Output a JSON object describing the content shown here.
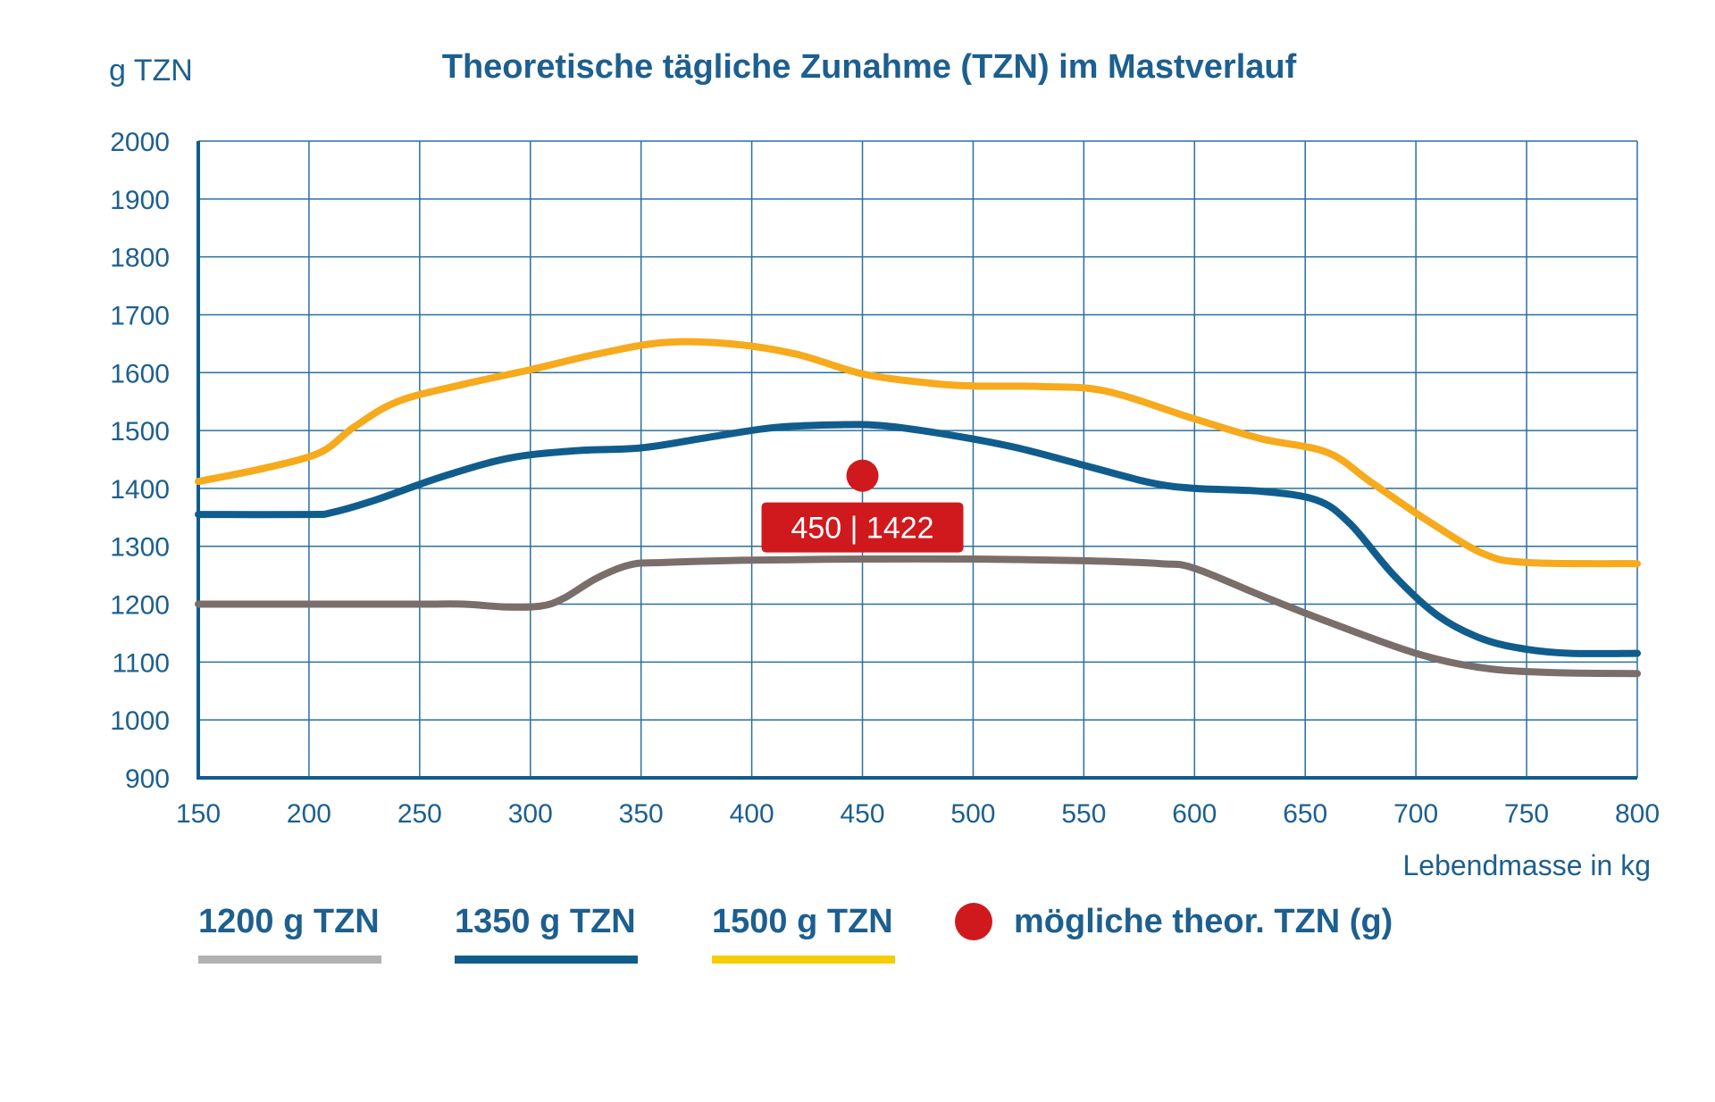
{
  "chart_data": {
    "type": "line",
    "title": "Theoretische tägliche Zunahme (TZN) im Mastverlauf",
    "ylabel": "g TZN",
    "xlabel": "Lebendmasse in kg",
    "xlim": [
      150,
      800
    ],
    "ylim": [
      900,
      2000
    ],
    "x_ticks": [
      "150",
      "200",
      "250",
      "300",
      "350",
      "400",
      "450",
      "500",
      "550",
      "600",
      "650",
      "700",
      "750",
      "800"
    ],
    "y_ticks": [
      "2000",
      "1900",
      "1800",
      "1700",
      "1600",
      "1500",
      "1400",
      "1300",
      "1200",
      "1100",
      "1000",
      "900"
    ],
    "grid": true,
    "series": [
      {
        "name": "1200 g TZN",
        "color": "#7a6e6b",
        "legend_color": "#b1b1b1",
        "points": [
          [
            150,
            1200
          ],
          [
            200,
            1200
          ],
          [
            250,
            1200
          ],
          [
            270,
            1200
          ],
          [
            290,
            1195
          ],
          [
            305,
            1197
          ],
          [
            315,
            1210
          ],
          [
            330,
            1245
          ],
          [
            345,
            1268
          ],
          [
            360,
            1272
          ],
          [
            400,
            1276
          ],
          [
            450,
            1278
          ],
          [
            500,
            1278
          ],
          [
            550,
            1275
          ],
          [
            585,
            1270
          ],
          [
            600,
            1262
          ],
          [
            630,
            1215
          ],
          [
            660,
            1170
          ],
          [
            700,
            1115
          ],
          [
            730,
            1090
          ],
          [
            760,
            1082
          ],
          [
            800,
            1080
          ]
        ]
      },
      {
        "name": "1350 g TZN",
        "color": "#105d8d",
        "legend_color": "#105d8d",
        "points": [
          [
            150,
            1355
          ],
          [
            200,
            1355
          ],
          [
            210,
            1358
          ],
          [
            230,
            1380
          ],
          [
            260,
            1420
          ],
          [
            290,
            1452
          ],
          [
            320,
            1465
          ],
          [
            350,
            1470
          ],
          [
            380,
            1488
          ],
          [
            410,
            1505
          ],
          [
            440,
            1510
          ],
          [
            460,
            1508
          ],
          [
            490,
            1492
          ],
          [
            520,
            1470
          ],
          [
            550,
            1440
          ],
          [
            580,
            1410
          ],
          [
            600,
            1400
          ],
          [
            630,
            1395
          ],
          [
            655,
            1380
          ],
          [
            670,
            1340
          ],
          [
            690,
            1250
          ],
          [
            710,
            1180
          ],
          [
            730,
            1140
          ],
          [
            750,
            1122
          ],
          [
            770,
            1115
          ],
          [
            800,
            1115
          ]
        ]
      },
      {
        "name": "1500 g TZN",
        "color": "#f6aa1c",
        "legend_color": "#f6cc05",
        "points": [
          [
            150,
            1412
          ],
          [
            180,
            1435
          ],
          [
            205,
            1462
          ],
          [
            220,
            1505
          ],
          [
            240,
            1550
          ],
          [
            270,
            1580
          ],
          [
            300,
            1605
          ],
          [
            330,
            1632
          ],
          [
            360,
            1652
          ],
          [
            390,
            1650
          ],
          [
            420,
            1632
          ],
          [
            450,
            1598
          ],
          [
            480,
            1582
          ],
          [
            500,
            1577
          ],
          [
            530,
            1576
          ],
          [
            560,
            1568
          ],
          [
            600,
            1520
          ],
          [
            630,
            1486
          ],
          [
            660,
            1462
          ],
          [
            680,
            1410
          ],
          [
            705,
            1345
          ],
          [
            730,
            1288
          ],
          [
            750,
            1272
          ],
          [
            800,
            1270
          ]
        ]
      }
    ],
    "marker": {
      "label": "mögliche theor. TZN (g)",
      "color": "#d0191d",
      "x": 450,
      "y": 1422,
      "callout": "450 | 1422"
    },
    "legend_position": "bottom"
  },
  "axis_color": "#105d8d",
  "grid_color": "#2a6fa0"
}
